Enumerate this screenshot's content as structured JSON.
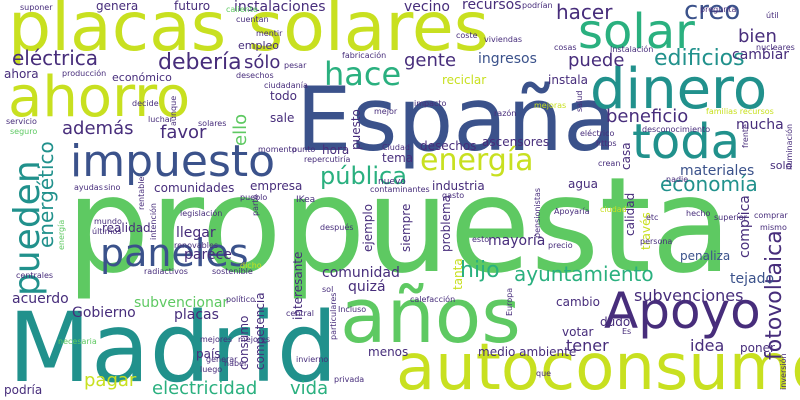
{
  "palette": {
    "navy": "#3b528b",
    "teal": "#21918c",
    "green": "#5ec962",
    "lime": "#c8e020",
    "purple": "#472d7b",
    "aqua": "#2ab07f"
  },
  "words": [
    {
      "text": "propuesta"
    },
    {
      "text": "España"
    },
    {
      "text": "placas solares"
    },
    {
      "text": "ahorro"
    },
    {
      "text": "Madrid"
    },
    {
      "text": "años"
    },
    {
      "text": "autoconsumo"
    },
    {
      "text": "dinero"
    },
    {
      "text": "toda"
    },
    {
      "text": "solar"
    },
    {
      "text": "impuesto"
    },
    {
      "text": "Apoyo"
    },
    {
      "text": "paneles"
    },
    {
      "text": "pueden"
    },
    {
      "text": "energía"
    },
    {
      "text": "hace"
    },
    {
      "text": "creo"
    },
    {
      "text": "edificios"
    },
    {
      "text": "hacer"
    },
    {
      "text": "eléctrica"
    },
    {
      "text": "debería"
    },
    {
      "text": "sólo"
    },
    {
      "text": "gente"
    },
    {
      "text": "ingresos"
    },
    {
      "text": "puede"
    },
    {
      "text": "bien"
    },
    {
      "text": "cambiar"
    },
    {
      "text": "instalaciones"
    },
    {
      "text": "vecino"
    },
    {
      "text": "recursos"
    },
    {
      "text": "genera"
    },
    {
      "text": "futuro"
    },
    {
      "text": "además"
    },
    {
      "text": "favor"
    },
    {
      "text": "ello"
    },
    {
      "text": "beneficio"
    },
    {
      "text": "mucha"
    },
    {
      "text": "economía"
    },
    {
      "text": "energético"
    },
    {
      "text": "pública"
    },
    {
      "text": "fotovoltaica"
    },
    {
      "text": "hijo"
    },
    {
      "text": "ayuntamiento"
    },
    {
      "text": "subvenciones"
    },
    {
      "text": "electricidad"
    },
    {
      "text": "vida"
    },
    {
      "text": "pagar"
    },
    {
      "text": "tener"
    },
    {
      "text": "idea"
    },
    {
      "text": "tejado"
    },
    {
      "text": "complica"
    },
    {
      "text": "acuerdo"
    },
    {
      "text": "subvencionar"
    },
    {
      "text": "Gobierno"
    },
    {
      "text": "placas"
    },
    {
      "text": "comunidad"
    },
    {
      "text": "quizá"
    },
    {
      "text": "comunidades"
    },
    {
      "text": "empresa"
    },
    {
      "text": "industria"
    },
    {
      "text": "agua"
    },
    {
      "text": "materiales"
    },
    {
      "text": "mayoría"
    },
    {
      "text": "penaliza"
    },
    {
      "text": "llegar"
    },
    {
      "text": "parece"
    },
    {
      "text": "realidad"
    },
    {
      "text": "cambio"
    },
    {
      "text": "dudo"
    },
    {
      "text": "votar"
    },
    {
      "text": "poner"
    },
    {
      "text": "medio ambiente"
    },
    {
      "text": "menos"
    },
    {
      "text": "país"
    },
    {
      "text": "consumo"
    },
    {
      "text": "competencia"
    },
    {
      "text": "interesante"
    },
    {
      "text": "podría"
    },
    {
      "text": "todo"
    },
    {
      "text": "sale"
    },
    {
      "text": "puesto"
    },
    {
      "text": "hora"
    },
    {
      "text": "desechos"
    },
    {
      "text": "ascensores"
    },
    {
      "text": "tema"
    },
    {
      "text": "casa"
    },
    {
      "text": "calidad"
    },
    {
      "text": "ejemplo"
    },
    {
      "text": "siempre"
    },
    {
      "text": "problema"
    },
    {
      "text": "través"
    },
    {
      "text": "tanta"
    },
    {
      "text": "reciclar"
    },
    {
      "text": "instala"
    },
    {
      "text": "ahora"
    },
    {
      "text": "económico"
    },
    {
      "text": "empleo"
    },
    {
      "text": "solo"
    },
    {
      "text": "nuevo"
    },
    {
      "text": "iluminación"
    },
    {
      "text": "mejores"
    },
    {
      "text": "hecho"
    },
    {
      "text": "superior"
    },
    {
      "text": "persona"
    },
    {
      "text": "precio"
    },
    {
      "text": "Apoyaría"
    },
    {
      "text": "pensionistas"
    },
    {
      "text": "ciudad"
    },
    {
      "text": "pregunta"
    },
    {
      "text": "útil"
    },
    {
      "text": "nucleares"
    },
    {
      "text": "podrían"
    },
    {
      "text": "caliente"
    },
    {
      "text": "cuentan"
    },
    {
      "text": "mentir"
    },
    {
      "text": "coste"
    },
    {
      "text": "viviendas"
    },
    {
      "text": "fabricación"
    },
    {
      "text": "cosas"
    },
    {
      "text": "Instalación"
    },
    {
      "text": "suponer"
    },
    {
      "text": "pesar"
    },
    {
      "text": "producción"
    },
    {
      "text": "desechos"
    },
    {
      "text": "ciudadanía"
    },
    {
      "text": "servicio"
    },
    {
      "text": "seguro"
    },
    {
      "text": "decide"
    },
    {
      "text": "luchar"
    },
    {
      "text": "solares"
    },
    {
      "text": "aunque"
    },
    {
      "text": "impacto"
    },
    {
      "text": "mejor"
    },
    {
      "text": "razón"
    },
    {
      "text": "salud"
    },
    {
      "text": "familias recursos"
    },
    {
      "text": "desconocimiento"
    },
    {
      "text": "https"
    },
    {
      "text": "eléctrico"
    },
    {
      "text": "frente"
    },
    {
      "text": "crean"
    },
    {
      "text": "nadie"
    },
    {
      "text": "comprar"
    },
    {
      "text": "mismo"
    },
    {
      "text": "etc"
    },
    {
      "text": "esto"
    },
    {
      "text": "Europa"
    },
    {
      "text": "energía"
    },
    {
      "text": "ayudas"
    },
    {
      "text": "sino"
    },
    {
      "text": "renovables"
    },
    {
      "text": "legislación"
    },
    {
      "text": "mundo"
    },
    {
      "text": "últimos"
    },
    {
      "text": "intención"
    },
    {
      "text": "dicho"
    },
    {
      "text": "radiactivos"
    },
    {
      "text": "sostenible"
    },
    {
      "text": "político"
    },
    {
      "text": "centrales"
    },
    {
      "text": "rentable"
    },
    {
      "text": "pueblo"
    },
    {
      "text": "IKea"
    },
    {
      "text": "después"
    },
    {
      "text": "contaminantes"
    },
    {
      "text": "gasto"
    },
    {
      "text": "calefacción"
    },
    {
      "text": "repercutiría"
    },
    {
      "text": "Ciudad"
    },
    {
      "text": "momento"
    },
    {
      "text": "punto"
    },
    {
      "text": "particulares"
    },
    {
      "text": "Incluso"
    },
    {
      "text": "central"
    },
    {
      "text": "sol"
    },
    {
      "text": "necesaria"
    },
    {
      "text": "mejores"
    },
    {
      "text": "generar"
    },
    {
      "text": "invierno"
    },
    {
      "text": "luego"
    },
    {
      "text": "haber"
    },
    {
      "text": "privada"
    },
    {
      "text": "que"
    },
    {
      "text": "inversión"
    },
    {
      "text": "Es"
    },
    {
      "text": "parte"
    },
    {
      "text": "mejoras"
    }
  ]
}
